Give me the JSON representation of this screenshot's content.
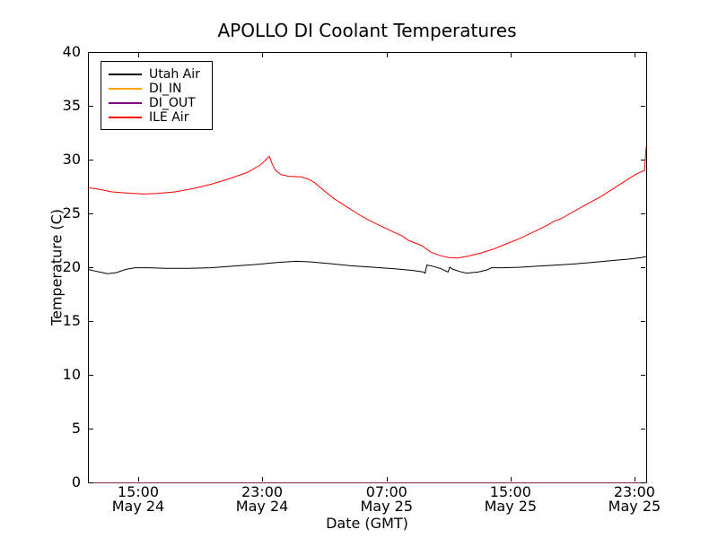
{
  "chart_data": {
    "type": "line",
    "title": "APOLLO DI Coolant Temperatures",
    "xlabel": "Date (GMT)",
    "ylabel": "Temperature (C)",
    "ylim": [
      0,
      40
    ],
    "yticks": [
      0,
      5,
      10,
      15,
      20,
      25,
      30,
      35,
      40
    ],
    "xticks": [
      {
        "pos": 0.09,
        "time": "15:00",
        "date": "May 24"
      },
      {
        "pos": 0.312,
        "time": "23:00",
        "date": "May 24"
      },
      {
        "pos": 0.535,
        "time": "07:00",
        "date": "May 25"
      },
      {
        "pos": 0.757,
        "time": "15:00",
        "date": "May 25"
      },
      {
        "pos": 0.979,
        "time": "23:00",
        "date": "May 25"
      }
    ],
    "grid": false,
    "legend_position": "upper left",
    "series": [
      {
        "name": "Utah Air",
        "color": "#000000",
        "points": [
          [
            0.0,
            19.8
          ],
          [
            0.016,
            19.6
          ],
          [
            0.035,
            19.4
          ],
          [
            0.051,
            19.5
          ],
          [
            0.068,
            19.8
          ],
          [
            0.084,
            19.95
          ],
          [
            0.108,
            19.95
          ],
          [
            0.14,
            19.9
          ],
          [
            0.18,
            19.9
          ],
          [
            0.22,
            19.95
          ],
          [
            0.26,
            20.1
          ],
          [
            0.3,
            20.25
          ],
          [
            0.341,
            20.45
          ],
          [
            0.373,
            20.55
          ],
          [
            0.397,
            20.5
          ],
          [
            0.429,
            20.35
          ],
          [
            0.469,
            20.15
          ],
          [
            0.51,
            20.0
          ],
          [
            0.55,
            19.85
          ],
          [
            0.582,
            19.7
          ],
          [
            0.601,
            19.55
          ],
          [
            0.604,
            19.45
          ],
          [
            0.607,
            20.2
          ],
          [
            0.617,
            20.1
          ],
          [
            0.633,
            19.85
          ],
          [
            0.645,
            19.55
          ],
          [
            0.648,
            20.0
          ],
          [
            0.654,
            19.8
          ],
          [
            0.666,
            19.6
          ],
          [
            0.678,
            19.45
          ],
          [
            0.699,
            19.55
          ],
          [
            0.715,
            19.75
          ],
          [
            0.723,
            19.95
          ],
          [
            0.743,
            19.95
          ],
          [
            0.775,
            20.0
          ],
          [
            0.807,
            20.1
          ],
          [
            0.839,
            20.2
          ],
          [
            0.871,
            20.3
          ],
          [
            0.904,
            20.45
          ],
          [
            0.936,
            20.6
          ],
          [
            0.968,
            20.75
          ],
          [
            0.992,
            20.9
          ],
          [
            1.0,
            21.0
          ]
        ]
      },
      {
        "name": "DI_IN",
        "color": "#ffa500",
        "stroke_opacity": 0.5,
        "points": [
          [
            0.0,
            0.0
          ],
          [
            1.0,
            0.0
          ]
        ]
      },
      {
        "name": "DI_OUT",
        "color": "#800080",
        "stroke_opacity": 0.55,
        "points": [
          [
            0.0,
            0.0
          ],
          [
            1.0,
            0.0
          ]
        ]
      },
      {
        "name": "ILE Air",
        "color": "#ff0000",
        "points": [
          [
            0.0,
            27.4
          ],
          [
            0.019,
            27.25
          ],
          [
            0.043,
            27.0
          ],
          [
            0.068,
            26.9
          ],
          [
            0.1,
            26.8
          ],
          [
            0.124,
            26.85
          ],
          [
            0.156,
            27.0
          ],
          [
            0.188,
            27.3
          ],
          [
            0.22,
            27.7
          ],
          [
            0.252,
            28.2
          ],
          [
            0.285,
            28.8
          ],
          [
            0.309,
            29.5
          ],
          [
            0.325,
            30.3
          ],
          [
            0.33,
            29.6
          ],
          [
            0.336,
            29.0
          ],
          [
            0.346,
            28.6
          ],
          [
            0.36,
            28.45
          ],
          [
            0.381,
            28.4
          ],
          [
            0.394,
            28.2
          ],
          [
            0.405,
            27.9
          ],
          [
            0.421,
            27.2
          ],
          [
            0.44,
            26.4
          ],
          [
            0.461,
            25.7
          ],
          [
            0.482,
            25.0
          ],
          [
            0.502,
            24.4
          ],
          [
            0.526,
            23.8
          ],
          [
            0.55,
            23.2
          ],
          [
            0.563,
            22.9
          ],
          [
            0.574,
            22.5
          ],
          [
            0.598,
            22.0
          ],
          [
            0.614,
            21.4
          ],
          [
            0.63,
            21.1
          ],
          [
            0.646,
            20.9
          ],
          [
            0.662,
            20.85
          ],
          [
            0.678,
            21.0
          ],
          [
            0.703,
            21.3
          ],
          [
            0.727,
            21.7
          ],
          [
            0.751,
            22.2
          ],
          [
            0.775,
            22.7
          ],
          [
            0.799,
            23.3
          ],
          [
            0.823,
            23.9
          ],
          [
            0.836,
            24.3
          ],
          [
            0.847,
            24.5
          ],
          [
            0.871,
            25.2
          ],
          [
            0.895,
            25.9
          ],
          [
            0.92,
            26.6
          ],
          [
            0.944,
            27.4
          ],
          [
            0.968,
            28.2
          ],
          [
            0.984,
            28.7
          ],
          [
            0.993,
            28.9
          ],
          [
            0.997,
            29.0
          ],
          [
            1.0,
            31.2
          ]
        ]
      }
    ]
  }
}
